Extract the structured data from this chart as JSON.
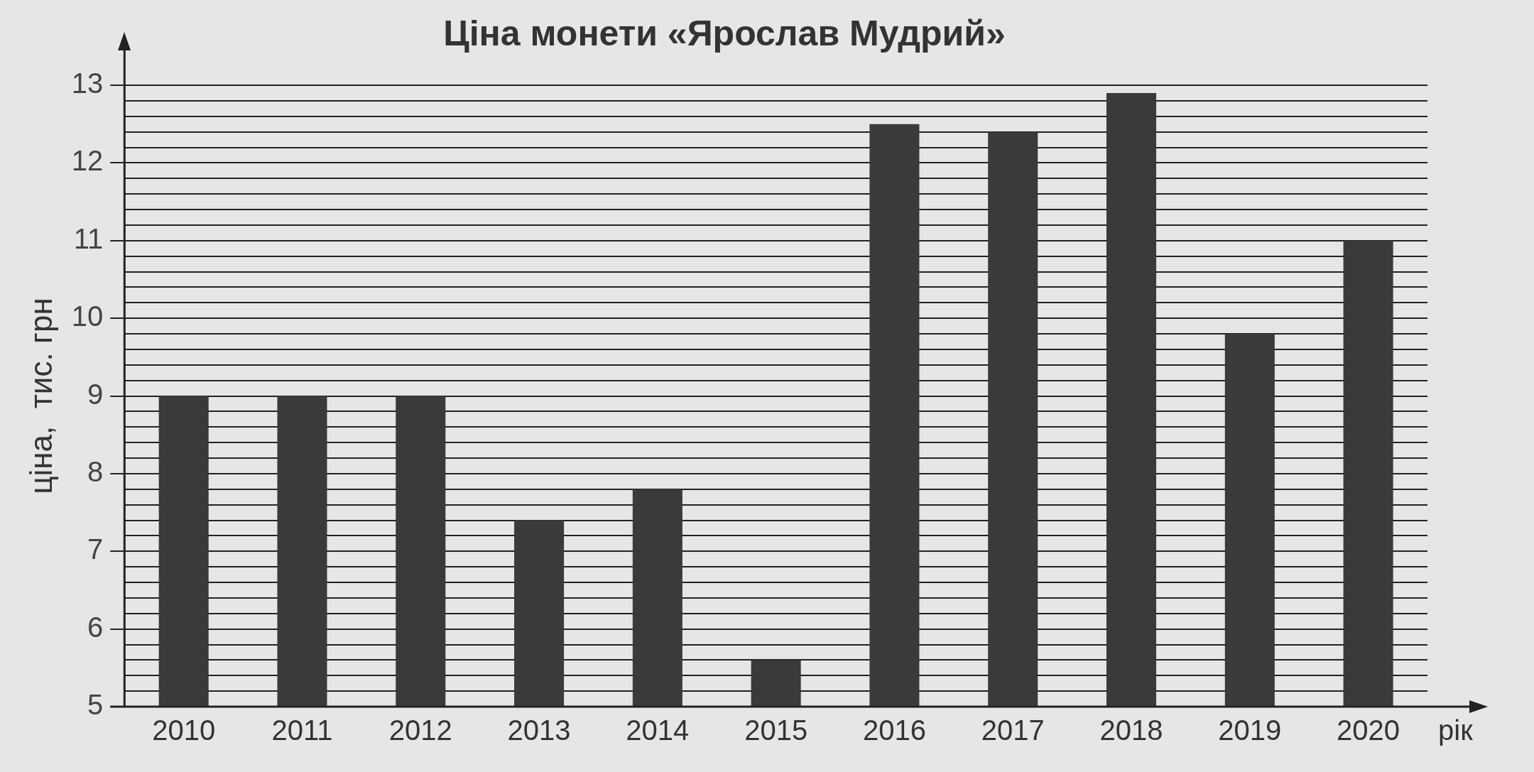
{
  "chart_data": {
    "type": "bar",
    "title": "Ціна монети «Ярослав Мудрий»",
    "xlabel": "рік",
    "ylabel": "ціна,  тис. грн",
    "categories": [
      "2010",
      "2011",
      "2012",
      "2013",
      "2014",
      "2015",
      "2016",
      "2017",
      "2018",
      "2019",
      "2020"
    ],
    "values": [
      9,
      9,
      9,
      7.4,
      7.8,
      5.6,
      12.5,
      12.4,
      12.9,
      9.8,
      11
    ],
    "color": "#3a3a3a",
    "ylim": [
      5,
      13
    ],
    "yticks": [
      5,
      {
        "value": 5.2,
        "label": null
      },
      {
        "value": 5.4,
        "label": null
      },
      {
        "value": 5.6,
        "label": null
      },
      {
        "value": 5.8,
        "label": null
      },
      6,
      {
        "value": 6.2,
        "label": null
      },
      {
        "value": 6.4,
        "label": null
      },
      {
        "value": 6.6,
        "label": null
      },
      {
        "value": 6.8,
        "label": null
      },
      7,
      {
        "value": 7.2,
        "label": null
      },
      {
        "value": 7.4,
        "label": null
      },
      {
        "value": 7.6,
        "label": null
      },
      {
        "value": 7.8,
        "label": null
      },
      8,
      {
        "value": 8.2,
        "label": null
      },
      {
        "value": 8.4,
        "label": null
      },
      {
        "value": 8.6,
        "label": null
      },
      {
        "value": 8.8,
        "label": null
      },
      9,
      {
        "value": 9.2,
        "label": null
      },
      {
        "value": 9.4,
        "label": null
      },
      {
        "value": 9.6,
        "label": null
      },
      {
        "value": 9.8,
        "label": null
      },
      10,
      {
        "value": 10.2,
        "label": null
      },
      {
        "value": 10.4,
        "label": null
      },
      {
        "value": 10.6,
        "label": null
      },
      {
        "value": 10.8,
        "label": null
      },
      11,
      {
        "value": 11.2,
        "label": null
      },
      {
        "value": 11.4,
        "label": null
      },
      {
        "value": 11.6,
        "label": null
      },
      {
        "value": 11.8,
        "label": null
      },
      12,
      {
        "value": 12.2,
        "label": null
      },
      {
        "value": 12.4,
        "label": null
      },
      {
        "value": 12.6,
        "label": null
      },
      {
        "value": 12.8,
        "label": null
      },
      13
    ],
    "grid": "y",
    "legend": false
  }
}
